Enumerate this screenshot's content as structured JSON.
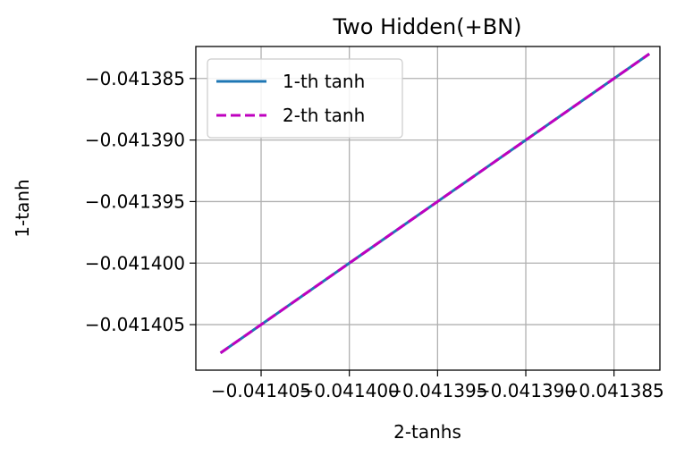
{
  "chart_data": {
    "type": "line",
    "title": "Two Hidden(+BN)",
    "xlabel": "2-tanhs",
    "ylabel": "1-tanh",
    "xlim": [
      -0.0414087,
      -0.0413824
    ],
    "ylim": [
      -0.0414087,
      -0.0413824
    ],
    "grid": true,
    "legend_position": "top-left",
    "x_ticks": [
      -0.041405,
      -0.0414,
      -0.041395,
      -0.04139,
      -0.041385
    ],
    "x_tick_labels": [
      "−0.041405",
      "−0.041400",
      "−0.041395",
      "−0.041390",
      "−0.041385"
    ],
    "y_ticks": [
      -0.041405,
      -0.0414,
      -0.041395,
      -0.04139,
      -0.041385
    ],
    "y_tick_labels": [
      "−0.041405",
      "−0.041400",
      "−0.041395",
      "−0.041390",
      "−0.041385"
    ],
    "series": [
      {
        "name": "1-th tanh",
        "color": "#1f77b4",
        "style": "solid",
        "x": [
          -0.0414073,
          -0.041383
        ],
        "y": [
          -0.0414073,
          -0.041383
        ]
      },
      {
        "name": "2-th tanh",
        "color": "#bf00bf",
        "style": "dashed",
        "x": [
          -0.0414073,
          -0.041383
        ],
        "y": [
          -0.0414073,
          -0.041383
        ]
      }
    ]
  }
}
